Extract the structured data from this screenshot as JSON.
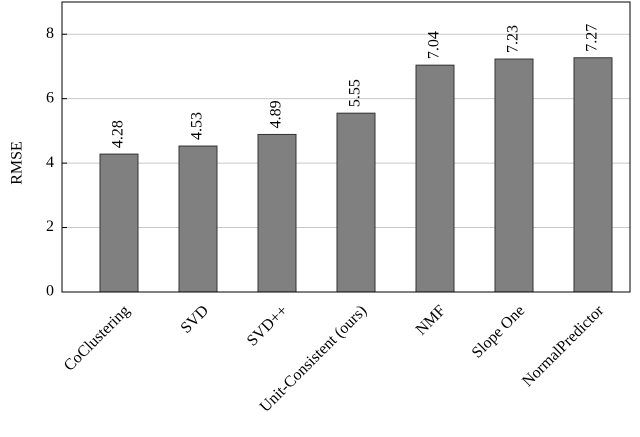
{
  "chart_data": {
    "type": "bar",
    "y_label": "RMSE",
    "categories": [
      "CoClustering",
      "SVD",
      "SVD++",
      "Unit-Consistent (ours)",
      "NMF",
      "Slope One",
      "NormalPredictor"
    ],
    "values": [
      4.28,
      4.53,
      4.89,
      5.55,
      7.04,
      7.23,
      7.27
    ],
    "color": "#808080",
    "ylim": [
      0,
      9
    ],
    "yticks": [
      0,
      2,
      4,
      6,
      8
    ],
    "grid": true,
    "value_labels_shown": true
  }
}
